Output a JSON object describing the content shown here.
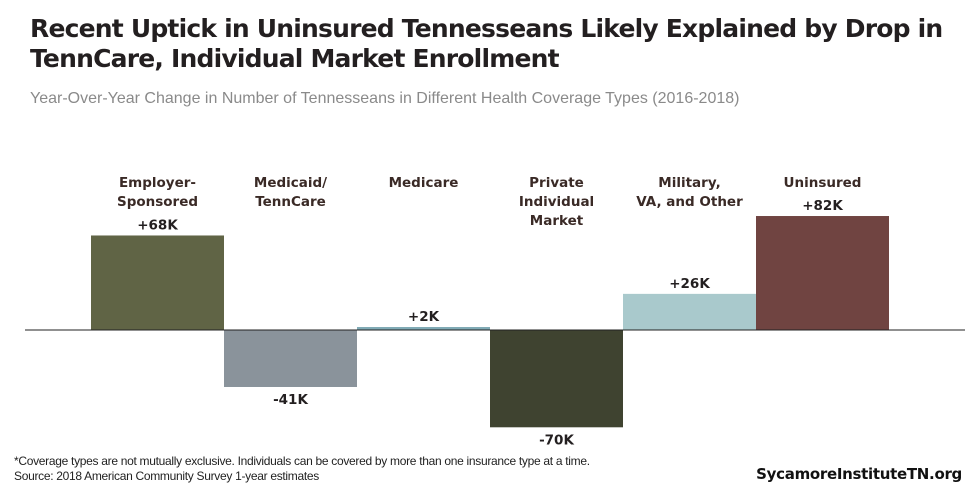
{
  "chart_data": {
    "type": "bar",
    "title": "Recent Uptick in Uninsured Tennesseans Likely Explained by Drop in TennCare, Individual Market Enrollment",
    "subtitle": "Year-Over-Year  Change in Number of Tennesseans in Different Health Coverage Types (2016-2018)",
    "categories": [
      [
        "Employer-",
        "Sponsored"
      ],
      [
        "Medicaid/",
        "TennCare"
      ],
      [
        "Medicare"
      ],
      [
        "Private",
        "Individual",
        "Market"
      ],
      [
        "Military,",
        "VA, and Other"
      ],
      [
        "Uninsured"
      ]
    ],
    "values": [
      68,
      -41,
      2,
      -70,
      26,
      82
    ],
    "data_labels": [
      "+68K",
      "-41K",
      "+2K",
      "-70K",
      "+26K",
      "+82K"
    ],
    "units": "thousands",
    "colors": [
      "#606445",
      "#8a939b",
      "#80aab5",
      "#3f4330",
      "#a9c9cc",
      "#704441"
    ],
    "grid": false,
    "legend": "none"
  },
  "footnote": "*Coverage types are not mutually exclusive. Individuals can be covered by more than one insurance type at a time.",
  "source": "Source: 2018 American Community Survey 1-year estimates",
  "brand": "SycamoreInstituteTN.org"
}
